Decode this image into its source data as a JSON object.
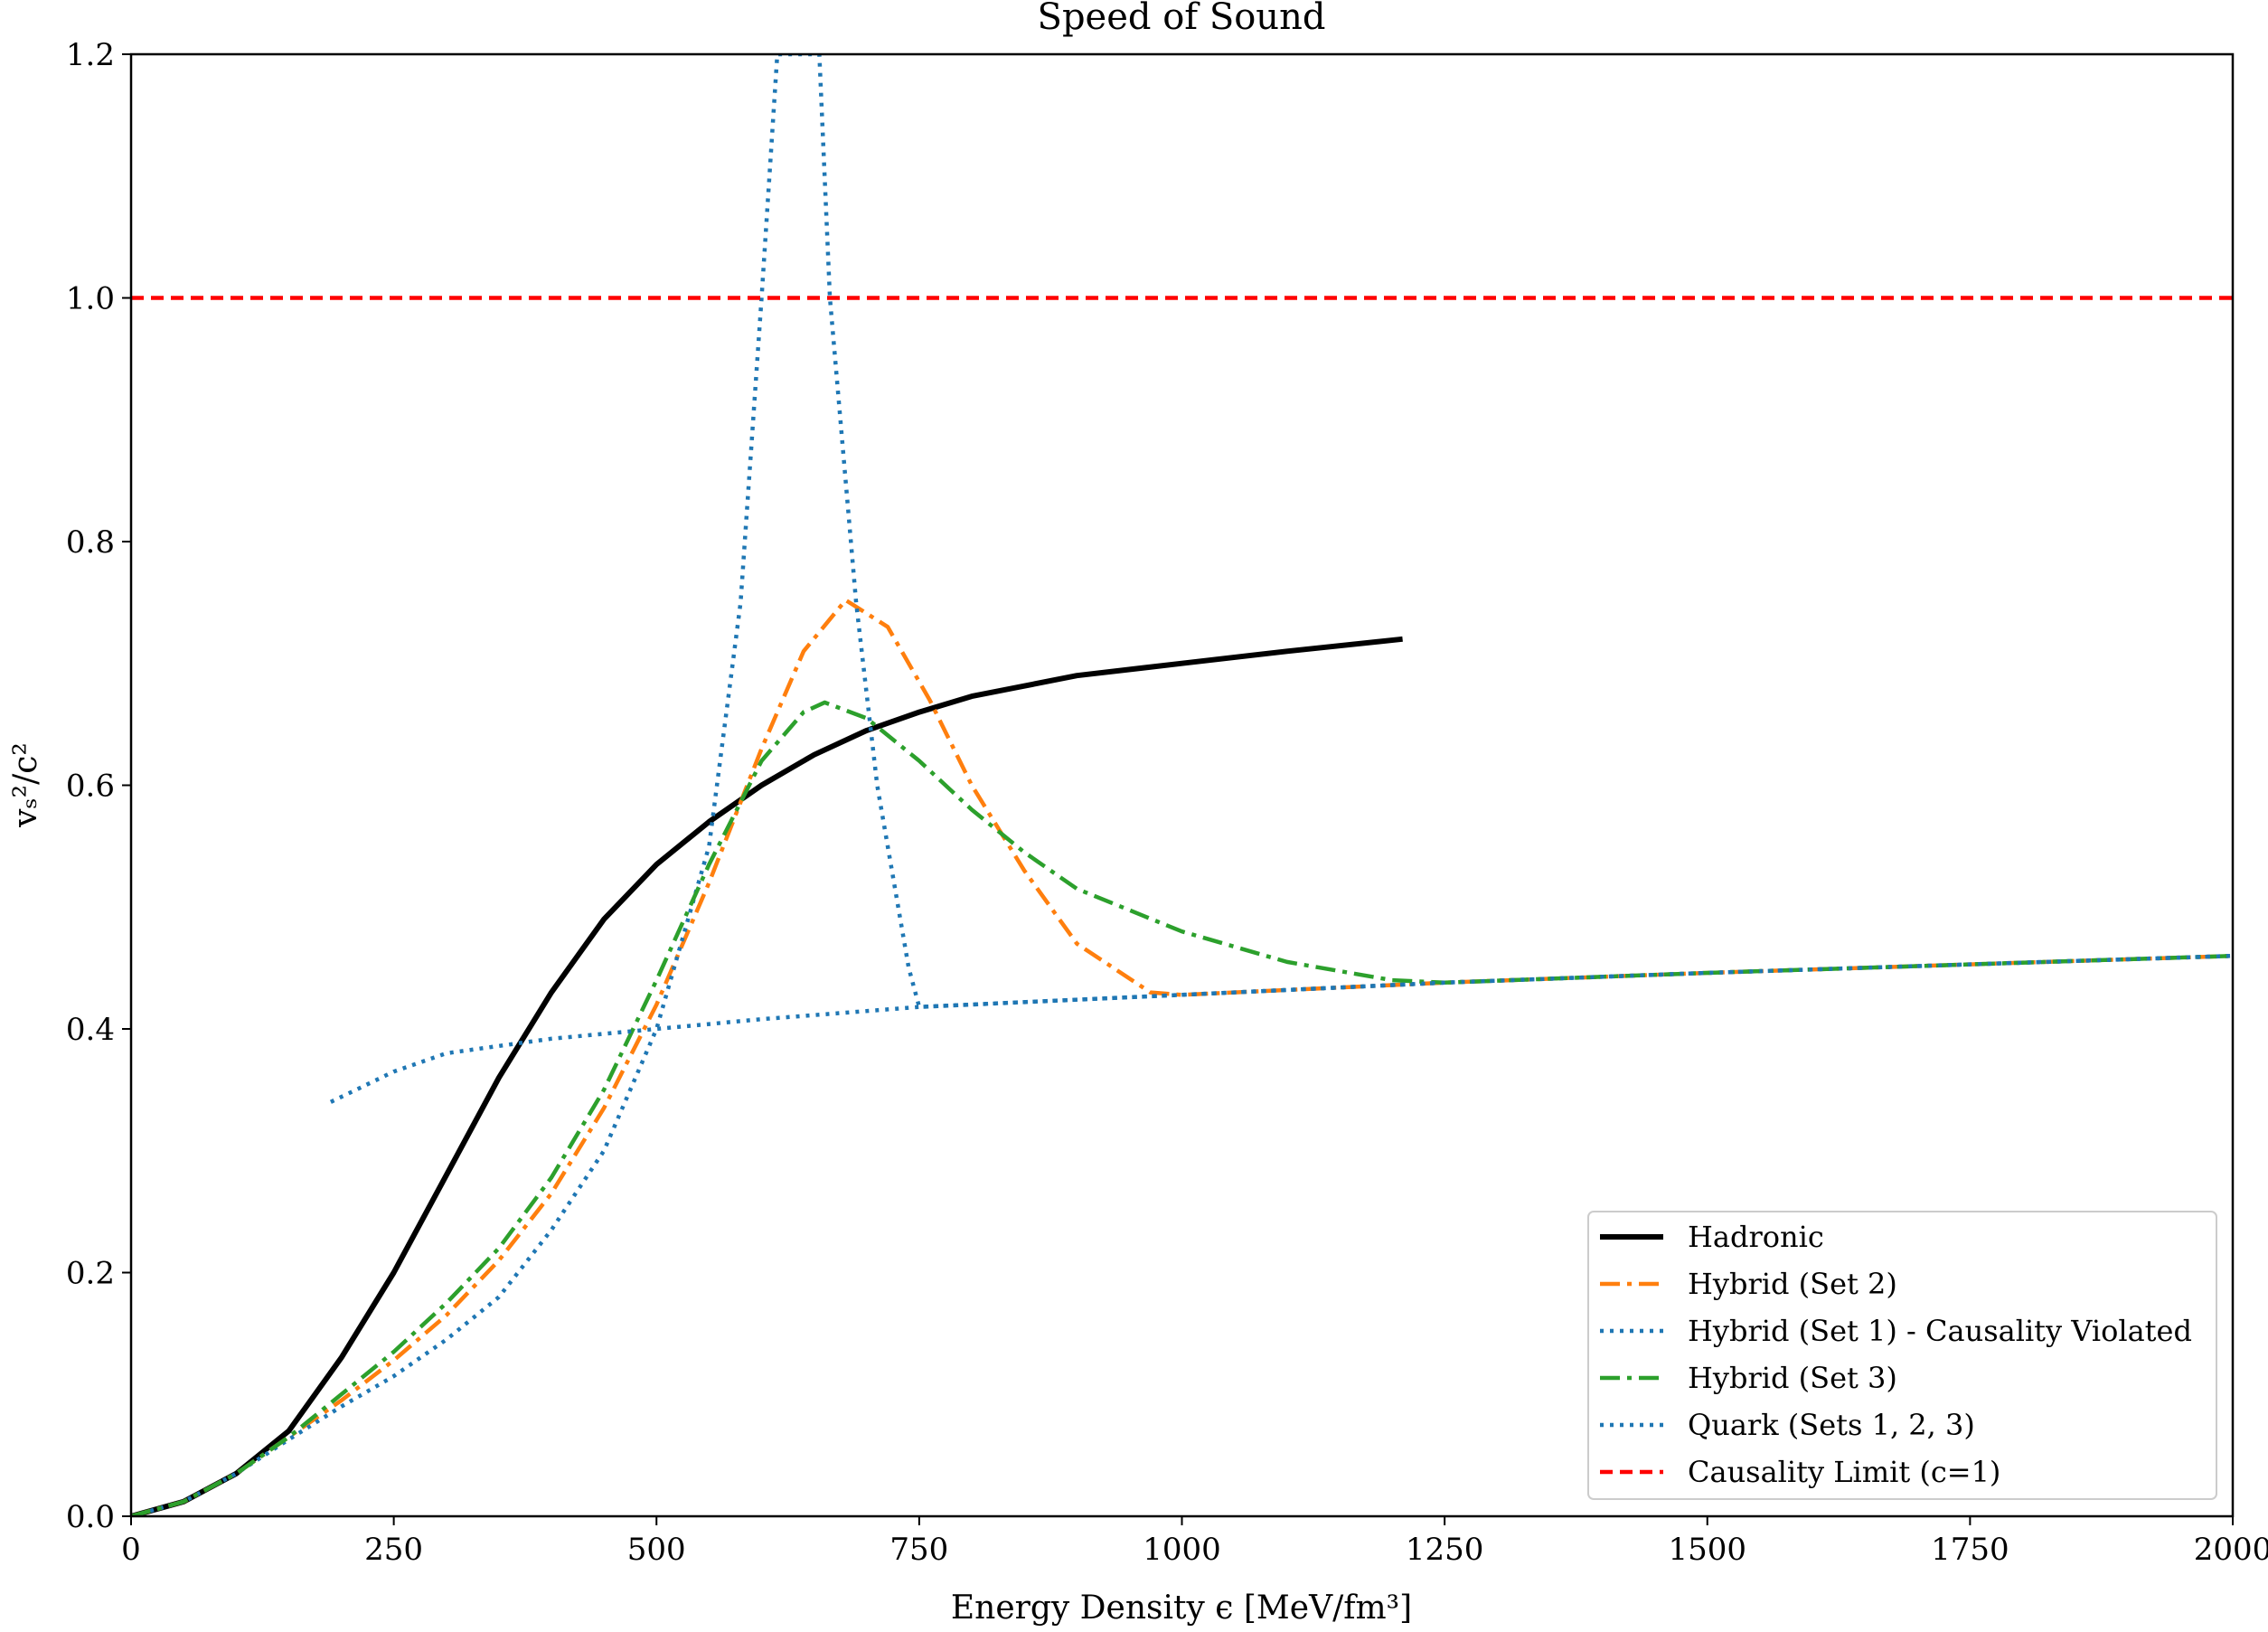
{
  "chart_data": {
    "type": "line",
    "title": "Speed of Sound",
    "xlabel": "Energy Density ϵ [MeV/fm³]",
    "ylabel": "vₛ²/c²",
    "xlim": [
      0,
      2000
    ],
    "ylim": [
      0,
      1.2
    ],
    "xticks": [
      "0",
      "250",
      "500",
      "750",
      "1000",
      "1250",
      "1500",
      "1750",
      "2000"
    ],
    "yticks": [
      "0.0",
      "0.2",
      "0.4",
      "0.6",
      "0.8",
      "1.0",
      "1.2"
    ],
    "grid": false,
    "legend_position": "lower-right",
    "series": [
      {
        "name": "Hadronic",
        "color": "#000000",
        "style": "solid",
        "points": [
          [
            0,
            0
          ],
          [
            50,
            0.012
          ],
          [
            100,
            0.035
          ],
          [
            150,
            0.07
          ],
          [
            200,
            0.13
          ],
          [
            250,
            0.2
          ],
          [
            300,
            0.28
          ],
          [
            350,
            0.36
          ],
          [
            400,
            0.43
          ],
          [
            450,
            0.49
          ],
          [
            500,
            0.535
          ],
          [
            550,
            0.57
          ],
          [
            600,
            0.6
          ],
          [
            650,
            0.625
          ],
          [
            700,
            0.645
          ],
          [
            750,
            0.66
          ],
          [
            800,
            0.673
          ],
          [
            900,
            0.69
          ],
          [
            1000,
            0.7
          ],
          [
            1100,
            0.71
          ],
          [
            1210,
            0.72
          ]
        ]
      },
      {
        "name": "Hybrid (Set 2)",
        "color": "#ff7f0e",
        "style": "dashdot",
        "points": [
          [
            0,
            0
          ],
          [
            50,
            0.012
          ],
          [
            100,
            0.035
          ],
          [
            150,
            0.065
          ],
          [
            200,
            0.095
          ],
          [
            250,
            0.128
          ],
          [
            300,
            0.165
          ],
          [
            350,
            0.21
          ],
          [
            400,
            0.265
          ],
          [
            450,
            0.335
          ],
          [
            500,
            0.42
          ],
          [
            550,
            0.52
          ],
          [
            600,
            0.63
          ],
          [
            640,
            0.71
          ],
          [
            680,
            0.752
          ],
          [
            720,
            0.73
          ],
          [
            760,
            0.67
          ],
          [
            800,
            0.6
          ],
          [
            850,
            0.53
          ],
          [
            900,
            0.47
          ],
          [
            970,
            0.43
          ],
          [
            1000,
            0.428
          ],
          [
            1250,
            0.438
          ],
          [
            1500,
            0.446
          ],
          [
            1750,
            0.453
          ],
          [
            2000,
            0.46
          ]
        ]
      },
      {
        "name": "Hybrid (Set 1) - Causality Violated",
        "color": "#1f77b4",
        "style": "dotted",
        "points": [
          [
            0,
            0
          ],
          [
            50,
            0.012
          ],
          [
            100,
            0.035
          ],
          [
            150,
            0.063
          ],
          [
            200,
            0.09
          ],
          [
            250,
            0.115
          ],
          [
            300,
            0.145
          ],
          [
            350,
            0.18
          ],
          [
            400,
            0.235
          ],
          [
            450,
            0.3
          ],
          [
            500,
            0.4
          ],
          [
            550,
            0.55
          ],
          [
            580,
            0.75
          ],
          [
            600,
            1.0
          ],
          [
            615,
            1.2
          ],
          [
            655,
            1.2
          ],
          [
            665,
            1.0
          ],
          [
            690,
            0.75
          ],
          [
            710,
            0.6
          ],
          [
            740,
            0.45
          ],
          [
            750,
            0.418
          ],
          [
            1000,
            0.428
          ],
          [
            1250,
            0.438
          ],
          [
            1500,
            0.446
          ],
          [
            1750,
            0.453
          ],
          [
            2000,
            0.46
          ]
        ]
      },
      {
        "name": "Hybrid (Set 3)",
        "color": "#2ca02c",
        "style": "dashdot",
        "points": [
          [
            0,
            0
          ],
          [
            50,
            0.012
          ],
          [
            100,
            0.035
          ],
          [
            150,
            0.065
          ],
          [
            200,
            0.1
          ],
          [
            250,
            0.135
          ],
          [
            300,
            0.175
          ],
          [
            350,
            0.22
          ],
          [
            400,
            0.278
          ],
          [
            450,
            0.35
          ],
          [
            500,
            0.44
          ],
          [
            550,
            0.535
          ],
          [
            600,
            0.62
          ],
          [
            640,
            0.66
          ],
          [
            660,
            0.668
          ],
          [
            700,
            0.655
          ],
          [
            750,
            0.62
          ],
          [
            800,
            0.58
          ],
          [
            850,
            0.545
          ],
          [
            900,
            0.515
          ],
          [
            1000,
            0.48
          ],
          [
            1100,
            0.455
          ],
          [
            1200,
            0.44
          ],
          [
            1250,
            0.438
          ],
          [
            1500,
            0.446
          ],
          [
            1750,
            0.453
          ],
          [
            2000,
            0.46
          ]
        ]
      },
      {
        "name": "Quark (Sets 1, 2, 3)",
        "color": "#1f77b4",
        "style": "dotted",
        "points": [
          [
            190,
            0.34
          ],
          [
            250,
            0.365
          ],
          [
            300,
            0.38
          ],
          [
            400,
            0.392
          ],
          [
            500,
            0.4
          ],
          [
            600,
            0.408
          ],
          [
            750,
            0.418
          ],
          [
            1000,
            0.428
          ],
          [
            1250,
            0.438
          ],
          [
            1500,
            0.446
          ],
          [
            1750,
            0.453
          ],
          [
            2000,
            0.46
          ]
        ]
      },
      {
        "name": "Causality Limit (c=1)",
        "color": "#ff0000",
        "style": "dashed",
        "points": [
          [
            0,
            1.0
          ],
          [
            2000,
            1.0
          ]
        ]
      }
    ]
  }
}
